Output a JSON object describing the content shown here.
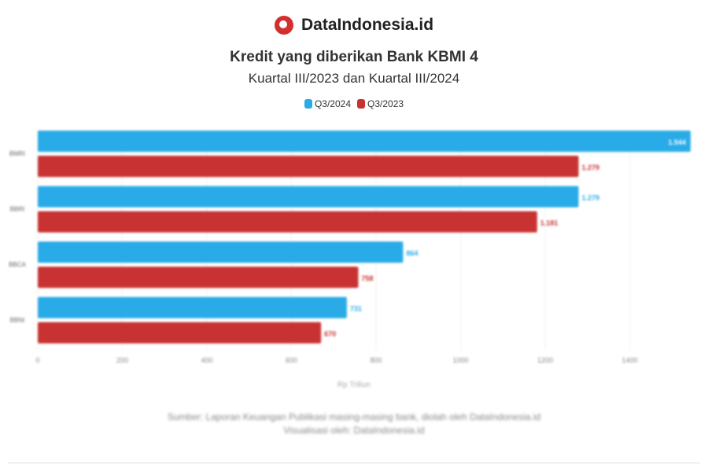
{
  "brand": {
    "name": "DataIndonesia.id",
    "logo_color": "#d32f2f"
  },
  "chart_data": {
    "type": "bar",
    "orientation": "horizontal",
    "title": "Kredit yang diberikan Bank KBMI 4",
    "subtitle": "Kuartal III/2023 dan Kuartal III/2024",
    "categories": [
      "BMRI",
      "BBRI",
      "BBCA",
      "BBNI"
    ],
    "series": [
      {
        "name": "Q3/2024",
        "color": "#29abe8",
        "values": [
          1544,
          1279,
          864,
          731
        ]
      },
      {
        "name": "Q3/2023",
        "color": "#c83232",
        "values": [
          1279,
          1181,
          758,
          670
        ]
      }
    ],
    "xlim": [
      0,
      1550
    ],
    "xticks": [
      0,
      200,
      400,
      600,
      800,
      1000,
      1200,
      1400
    ],
    "xlabel": "Rp Triliun",
    "ylabel": "",
    "grid": true,
    "legend": "top-center"
  },
  "footer": {
    "source": "Sumber: Laporan Keuangan Publikasi masing-masing bank, diolah oleh DataIndonesia.id",
    "credit": "Visualisasi oleh: DataIndonesia.id"
  }
}
